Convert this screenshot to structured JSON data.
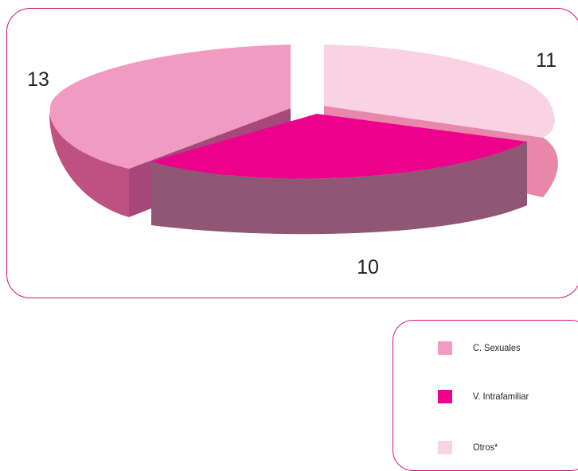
{
  "chart_data": {
    "type": "pie",
    "style": "3d-exploded",
    "slices": [
      {
        "name": "C. Sexuales",
        "value": 13,
        "label": "13",
        "colors": {
          "top": "#f19ac2",
          "side": "#bd5182"
        }
      },
      {
        "name": "V. Intrafamiliar",
        "value": 10,
        "label": "10",
        "colors": {
          "top": "#ec008c",
          "side": "#8f5773"
        }
      },
      {
        "name": "Otros*",
        "value": 11,
        "label": "11",
        "colors": {
          "top": "#f9d3e4",
          "side": "#e887aa"
        }
      }
    ],
    "legend_position": "bottom-right",
    "frame_color": "#d0157a"
  }
}
